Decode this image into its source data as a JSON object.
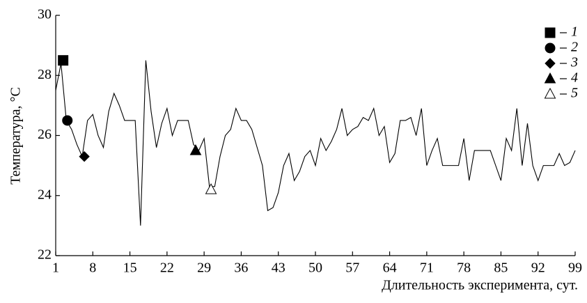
{
  "chart_data": {
    "type": "line",
    "y_label": "Температура, °C",
    "x_label": "Длительность эксперимента, сут.",
    "x": [
      1,
      2,
      3,
      4,
      5,
      6,
      7,
      8,
      9,
      10,
      11,
      12,
      13,
      14,
      15,
      16,
      17,
      18,
      19,
      20,
      21,
      22,
      23,
      24,
      25,
      26,
      27,
      28,
      29,
      30,
      31,
      32,
      33,
      34,
      35,
      36,
      37,
      38,
      39,
      40,
      41,
      42,
      43,
      44,
      45,
      46,
      47,
      48,
      49,
      50,
      51,
      52,
      53,
      54,
      55,
      56,
      57,
      58,
      59,
      60,
      61,
      62,
      63,
      64,
      65,
      66,
      67,
      68,
      69,
      70,
      71,
      72,
      73,
      74,
      75,
      76,
      77,
      78,
      79,
      80,
      81,
      82,
      83,
      84,
      85,
      86,
      87,
      88,
      89,
      90,
      91,
      92,
      93,
      94,
      95,
      96,
      97,
      98,
      99
    ],
    "series": [
      {
        "color": "#000000",
        "values": [
          27.5,
          28.4,
          26.5,
          26.2,
          25.7,
          25.3,
          26.5,
          26.7,
          26.0,
          25.6,
          26.8,
          27.4,
          27.0,
          26.5,
          26.5,
          26.5,
          23.0,
          28.5,
          26.8,
          25.6,
          26.4,
          26.9,
          26.0,
          26.5,
          26.5,
          26.5,
          25.7,
          25.5,
          25.9,
          24.3,
          24.3,
          25.3,
          26.0,
          26.2,
          26.9,
          26.5,
          26.5,
          26.2,
          25.6,
          25.0,
          23.5,
          23.6,
          24.1,
          25.0,
          25.4,
          24.5,
          24.8,
          25.3,
          25.5,
          25.0,
          25.9,
          25.5,
          25.8,
          26.2,
          26.9,
          26.0,
          26.2,
          26.3,
          26.6,
          26.5,
          26.9,
          26.0,
          26.3,
          25.1,
          25.4,
          26.5,
          26.5,
          26.6,
          26.0,
          26.9,
          25.0,
          25.5,
          25.9,
          25.0,
          25.0,
          25.0,
          25.0,
          25.9,
          24.5,
          25.5,
          25.5,
          25.5,
          25.5,
          25.0,
          24.5,
          25.9,
          25.5,
          26.9,
          25.0,
          26.4,
          25.0,
          24.5,
          25.0,
          25.0,
          25.0,
          25.4,
          25.0,
          25.1,
          25.5
        ]
      }
    ],
    "markers": [
      {
        "name": "1",
        "shape": "square",
        "filled": true,
        "x": 2.4,
        "y": 28.5
      },
      {
        "name": "2",
        "shape": "circle",
        "filled": true,
        "x": 3.2,
        "y": 26.5
      },
      {
        "name": "3",
        "shape": "diamond",
        "filled": true,
        "x": 6.4,
        "y": 25.3
      },
      {
        "name": "4",
        "shape": "triangle",
        "filled": true,
        "x": 27.4,
        "y": 25.5
      },
      {
        "name": "5",
        "shape": "triangle",
        "filled": false,
        "x": 30.3,
        "y": 24.2
      }
    ],
    "xlim": [
      1,
      99
    ],
    "xticks": [
      1,
      8,
      15,
      22,
      29,
      36,
      43,
      50,
      57,
      64,
      71,
      78,
      85,
      92,
      99
    ],
    "ylim": [
      22,
      30
    ],
    "yticks": [
      22,
      24,
      26,
      28,
      30
    ],
    "legend": "upper right"
  }
}
